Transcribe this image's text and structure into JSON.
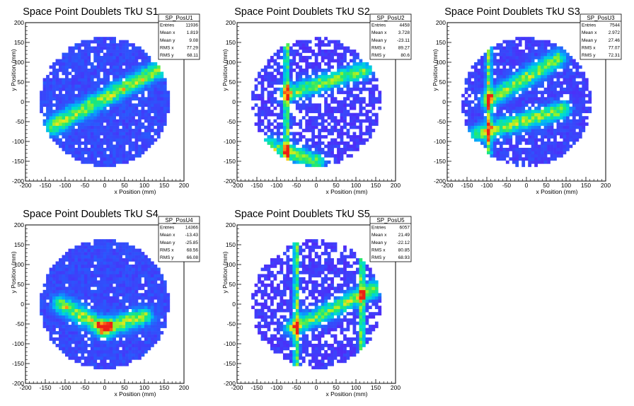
{
  "chart_data": [
    {
      "type": "heatmap",
      "title": "Space Point Doublets TkU S1",
      "xlabel": "x Position (mm)",
      "ylabel": "y Position (mm)",
      "xlim": [
        -200,
        200
      ],
      "ylim": [
        -200,
        200
      ],
      "xticks": [
        -200,
        -150,
        -100,
        -50,
        0,
        50,
        100,
        150,
        200
      ],
      "yticks": [
        -200,
        -150,
        -100,
        -50,
        0,
        50,
        100,
        150,
        200
      ],
      "colormap": "rainbow",
      "fill_region": "circle radius ~160 mm",
      "features": [
        {
          "kind": "diagonal band",
          "from": [
            -130,
            -60
          ],
          "to": [
            150,
            90
          ]
        }
      ],
      "stats": {
        "name": "SP_PosU1",
        "rows": [
          {
            "label": "Entries",
            "value": "11936"
          },
          {
            "label": "Mean x",
            "value": "1.819"
          },
          {
            "label": "Mean y",
            "value": "9.08"
          },
          {
            "label": "RMS x",
            "value": "77.29"
          },
          {
            "label": "RMS y",
            "value": "68.11"
          }
        ]
      }
    },
    {
      "type": "heatmap",
      "title": "Space Point Doublets TkU S2",
      "xlabel": "x Position (mm)",
      "ylabel": "y Position (mm)",
      "xlim": [
        -200,
        200
      ],
      "ylim": [
        -200,
        200
      ],
      "xticks": [
        -200,
        -150,
        -100,
        -50,
        0,
        50,
        100,
        150,
        200
      ],
      "yticks": [
        -200,
        -150,
        -100,
        -50,
        0,
        50,
        100,
        150,
        200
      ],
      "colormap": "rainbow",
      "fill_region": "circle radius ~160 mm",
      "features": [
        {
          "kind": "vertical line",
          "x": -75
        },
        {
          "kind": "diagonal band",
          "from": [
            -75,
            20
          ],
          "to": [
            120,
            80
          ]
        },
        {
          "kind": "diagonal band",
          "from": [
            -120,
            -110
          ],
          "to": [
            0,
            -150
          ]
        }
      ],
      "stats": {
        "name": "SP_PosU2",
        "rows": [
          {
            "label": "Entries",
            "value": "4458"
          },
          {
            "label": "Mean x",
            "value": "3.728"
          },
          {
            "label": "Mean y",
            "value": "-23.11"
          },
          {
            "label": "RMS x",
            "value": "89.27"
          },
          {
            "label": "RMS y",
            "value": "80.6"
          }
        ]
      }
    },
    {
      "type": "heatmap",
      "title": "Space Point Doublets TkU S3",
      "xlabel": "x Position (mm)",
      "ylabel": "y Position (mm)",
      "xlim": [
        -200,
        200
      ],
      "ylim": [
        -200,
        200
      ],
      "xticks": [
        -200,
        -150,
        -100,
        -50,
        0,
        50,
        100,
        150,
        200
      ],
      "yticks": [
        -200,
        -150,
        -100,
        -50,
        0,
        50,
        100,
        150,
        200
      ],
      "colormap": "rainbow",
      "fill_region": "circle radius ~160 mm",
      "features": [
        {
          "kind": "vertical line",
          "x": -95
        },
        {
          "kind": "diagonal band",
          "from": [
            -95,
            5
          ],
          "to": [
            80,
            110
          ]
        },
        {
          "kind": "diagonal band",
          "from": [
            -120,
            -80
          ],
          "to": [
            90,
            -20
          ]
        }
      ],
      "stats": {
        "name": "SP_PosU3",
        "rows": [
          {
            "label": "Entries",
            "value": "7544"
          },
          {
            "label": "Mean x",
            "value": "2.972"
          },
          {
            "label": "Mean y",
            "value": "27.46"
          },
          {
            "label": "RMS x",
            "value": "77.07"
          },
          {
            "label": "RMS y",
            "value": "72.31"
          }
        ]
      }
    },
    {
      "type": "heatmap",
      "title": "Space Point Doublets TkU S4",
      "xlabel": "x Position (mm)",
      "ylabel": "y Position (mm)",
      "xlim": [
        -200,
        200
      ],
      "ylim": [
        -200,
        200
      ],
      "xticks": [
        -200,
        -150,
        -100,
        -50,
        0,
        50,
        100,
        150,
        200
      ],
      "yticks": [
        -200,
        -150,
        -100,
        -50,
        0,
        50,
        100,
        150,
        200
      ],
      "colormap": "rainbow",
      "fill_region": "circle radius ~160 mm",
      "features": [
        {
          "kind": "diagonal band",
          "from": [
            -110,
            0
          ],
          "to": [
            0,
            -60
          ]
        },
        {
          "kind": "diagonal band",
          "from": [
            0,
            -60
          ],
          "to": [
            100,
            -30
          ]
        }
      ],
      "stats": {
        "name": "SP_PosU4",
        "rows": [
          {
            "label": "Entries",
            "value": "14366"
          },
          {
            "label": "Mean x",
            "value": "-13.43"
          },
          {
            "label": "Mean y",
            "value": "-25.85"
          },
          {
            "label": "RMS x",
            "value": "68.56"
          },
          {
            "label": "RMS y",
            "value": "66.08"
          }
        ]
      }
    },
    {
      "type": "heatmap",
      "title": "Space Point Doublets TkU S5",
      "xlabel": "x Position (mm)",
      "ylabel": "y Position (mm)",
      "xlim": [
        -200,
        200
      ],
      "ylim": [
        -200,
        200
      ],
      "xticks": [
        -200,
        -150,
        -100,
        -50,
        0,
        50,
        100,
        150,
        200
      ],
      "yticks": [
        -200,
        -150,
        -100,
        -50,
        0,
        50,
        100,
        150,
        200
      ],
      "colormap": "rainbow",
      "fill_region": "circle radius ~160 mm",
      "features": [
        {
          "kind": "vertical line",
          "x": -50
        },
        {
          "kind": "diagonal band",
          "from": [
            -60,
            -60
          ],
          "to": [
            150,
            40
          ]
        },
        {
          "kind": "vertical line",
          "x": 115
        }
      ],
      "stats": {
        "name": "SP_PosU5",
        "rows": [
          {
            "label": "Entries",
            "value": "6057"
          },
          {
            "label": "Mean x",
            "value": "21.49"
          },
          {
            "label": "Mean y",
            "value": "-22.12"
          },
          {
            "label": "RMS x",
            "value": "80.85"
          },
          {
            "label": "RMS y",
            "value": "68.93"
          }
        ]
      }
    }
  ]
}
